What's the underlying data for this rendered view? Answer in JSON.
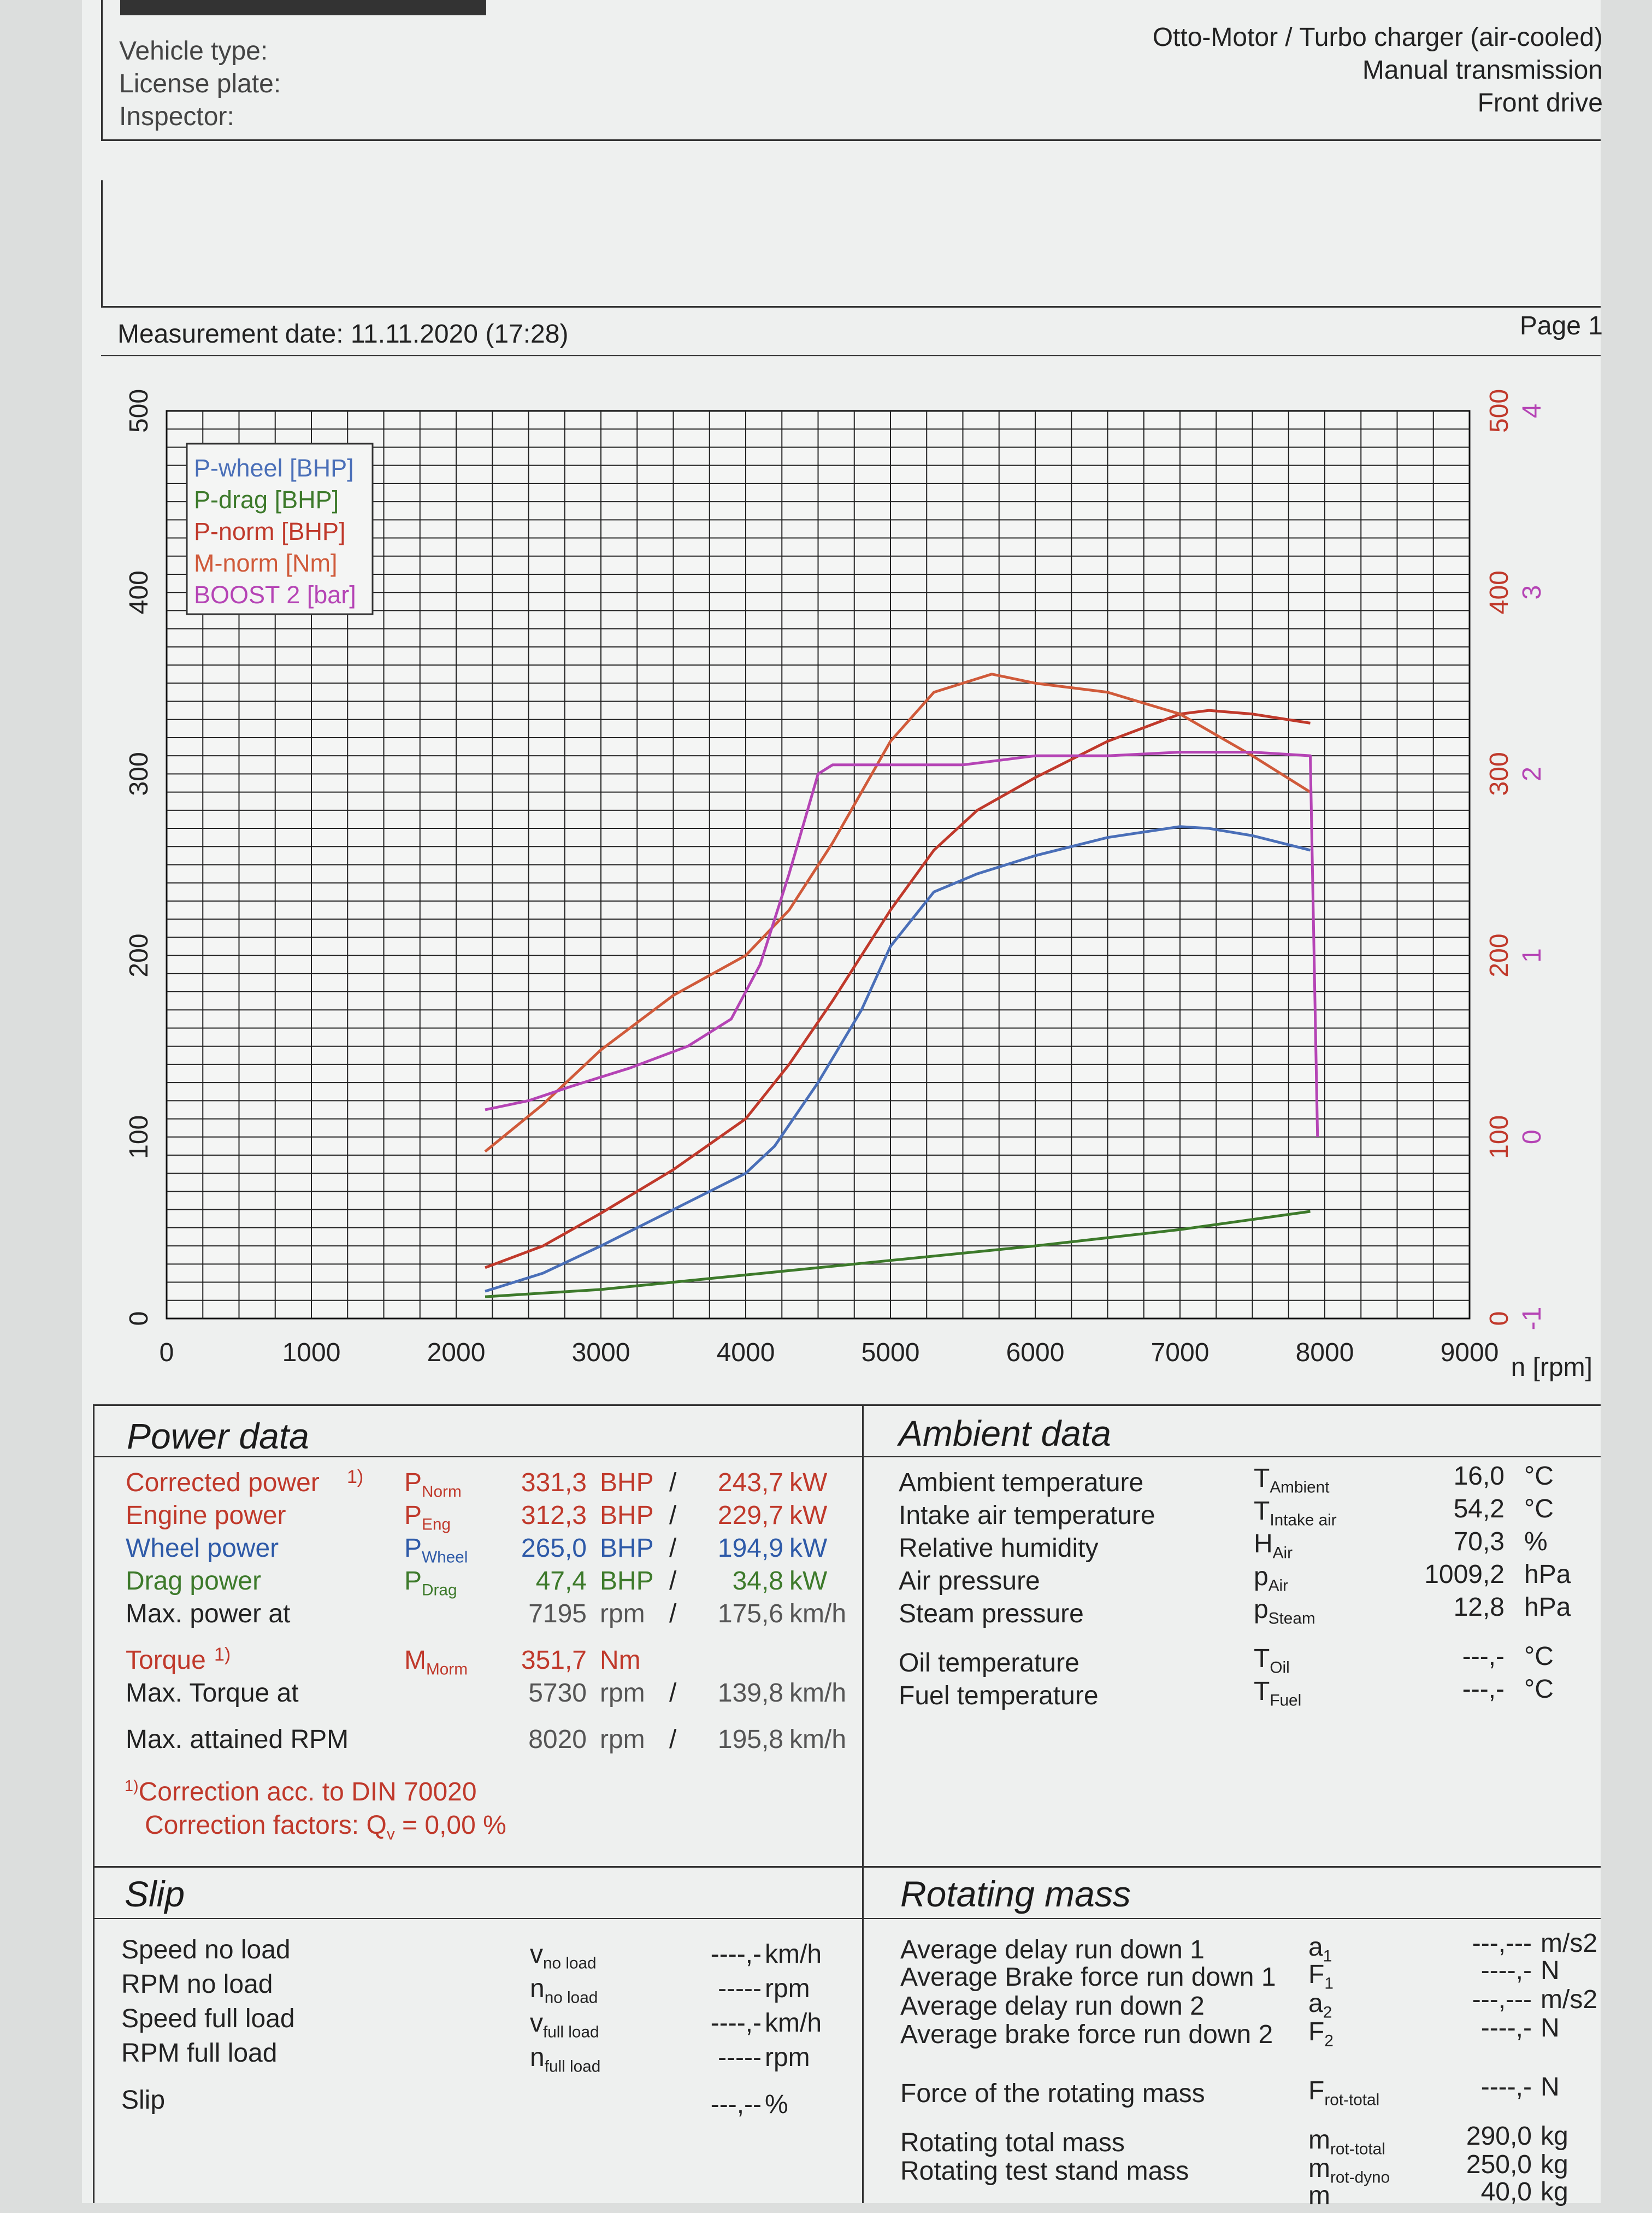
{
  "header": {
    "left": [
      "Vehicle type:",
      "License plate:",
      "Inspector:"
    ],
    "right": [
      "Otto-Motor / Turbo charger (air-cooled)",
      "Manual transmission",
      "Front drive"
    ],
    "measurement": "Measurement date: 11.11.2020 (17:28)",
    "page": "Page 1"
  },
  "chart_data": {
    "type": "line",
    "xlabel": "n [rpm]",
    "x_ticks": [
      "0",
      "1000",
      "2000",
      "3000",
      "4000",
      "5000",
      "6000",
      "7000",
      "8000",
      "9000"
    ],
    "xlim": [
      0,
      9000
    ],
    "left_y_ticks": [
      "0",
      "100",
      "200",
      "300",
      "400",
      "500"
    ],
    "ylim_left": [
      0,
      500
    ],
    "right_y_ticks_torque": [
      "0",
      "100",
      "200",
      "300",
      "400",
      "500"
    ],
    "right_y_ticks_boost": [
      "-1",
      "0",
      "1",
      "2",
      "3",
      "4"
    ],
    "ylim_boost": [
      -1,
      4
    ],
    "grid": true,
    "legend_position": "top-left",
    "series": [
      {
        "name": "P-wheel [BHP]",
        "color": "#4a6fb8",
        "x": [
          2200,
          2600,
          3000,
          3500,
          4000,
          4200,
          4500,
          4800,
          5000,
          5300,
          5600,
          6000,
          6500,
          7000,
          7200,
          7500,
          7900
        ],
        "y": [
          15,
          25,
          40,
          60,
          80,
          95,
          130,
          170,
          205,
          235,
          245,
          255,
          265,
          271,
          270,
          266,
          258
        ]
      },
      {
        "name": "P-drag [BHP]",
        "color": "#3d7a2b",
        "x": [
          2200,
          3000,
          4000,
          5000,
          6000,
          7000,
          7900
        ],
        "y": [
          12,
          16,
          24,
          32,
          40,
          49,
          59
        ]
      },
      {
        "name": "P-norm [BHP]",
        "color": "#c0392b",
        "x": [
          2200,
          2600,
          3000,
          3500,
          4000,
          4300,
          4600,
          5000,
          5300,
          5600,
          6000,
          6500,
          7000,
          7200,
          7500,
          7900
        ],
        "y": [
          28,
          40,
          58,
          82,
          110,
          140,
          175,
          225,
          258,
          280,
          298,
          318,
          333,
          335,
          333,
          328
        ]
      },
      {
        "name": "M-norm [Nm]",
        "color": "#d05a3a",
        "x": [
          2200,
          2600,
          3000,
          3500,
          4000,
          4300,
          4600,
          5000,
          5300,
          5700,
          6000,
          6500,
          7000,
          7500,
          7900
        ],
        "y": [
          92,
          118,
          148,
          178,
          200,
          225,
          262,
          318,
          345,
          355,
          350,
          345,
          333,
          310,
          290
        ]
      },
      {
        "name": "BOOST 2 [bar]",
        "color": "#b544b5",
        "x": [
          2200,
          2500,
          2800,
          3200,
          3600,
          3900,
          4100,
          4300,
          4500,
          4600,
          5000,
          5500,
          6000,
          6500,
          7000,
          7500,
          7900,
          7950
        ],
        "y": [
          0.15,
          0.2,
          0.28,
          0.38,
          0.5,
          0.65,
          0.95,
          1.45,
          2.0,
          2.05,
          2.05,
          2.05,
          2.1,
          2.1,
          2.12,
          2.12,
          2.1,
          0.0
        ]
      }
    ]
  },
  "power": {
    "title": "Power data",
    "rows": [
      {
        "label": "Corrected power",
        "sup": "1)",
        "sym": "P",
        "sub": "Norm",
        "v1": "331,3",
        "u1": "BHP",
        "sep": "/",
        "v2": "243,7",
        "u2": "kW"
      },
      {
        "label": "Engine power",
        "sym": "P",
        "sub": "Eng",
        "v1": "312,3",
        "u1": "BHP",
        "sep": "/",
        "v2": "229,7",
        "u2": "kW"
      },
      {
        "label": "Wheel power",
        "sym": "P",
        "sub": "Wheel",
        "v1": "265,0",
        "u1": "BHP",
        "sep": "/",
        "v2": "194,9",
        "u2": "kW"
      },
      {
        "label": "Drag power",
        "sym": "P",
        "sub": "Drag",
        "v1": "47,4",
        "u1": "BHP",
        "sep": "/",
        "v2": "34,8",
        "u2": "kW"
      },
      {
        "label": "Max. power at",
        "v1": "7195",
        "u1": "rpm",
        "sep": "/",
        "v2": "175,6",
        "u2": "km/h"
      },
      {
        "label": "Torque",
        "sup": "1)",
        "sym": "M",
        "sub": "Morm",
        "v1": "351,7",
        "u1": "Nm"
      },
      {
        "label": "Max. Torque at",
        "v1": "5730",
        "u1": "rpm",
        "sep": "/",
        "v2": "139,8",
        "u2": "km/h"
      },
      {
        "label": "Max. attained RPM",
        "v1": "8020",
        "u1": "rpm",
        "sep": "/",
        "v2": "195,8",
        "u2": "km/h"
      }
    ],
    "note1_sup": "1)",
    "note1": "Correction acc. to DIN 70020",
    "note2_a": "Correction factors: Q",
    "note2_sub": "v",
    "note2_b": " =   0,00 %"
  },
  "ambient": {
    "title": "Ambient data",
    "rows": [
      {
        "label": "Ambient temperature",
        "sym": "T",
        "sub": "Ambient",
        "val": "16,0",
        "unit": "°C"
      },
      {
        "label": "Intake air temperature",
        "sym": "T",
        "sub": "Intake air",
        "val": "54,2",
        "unit": "°C"
      },
      {
        "label": "Relative humidity",
        "sym": "H",
        "sub": "Air",
        "val": "70,3",
        "unit": "%"
      },
      {
        "label": "Air pressure",
        "sym": "p",
        "sub": "Air",
        "val": "1009,2",
        "unit": "hPa"
      },
      {
        "label": "Steam pressure",
        "sym": "p",
        "sub": "Steam",
        "val": "12,8",
        "unit": "hPa"
      },
      {
        "label": "Oil temperature",
        "sym": "T",
        "sub": "Oil",
        "val": "---,-",
        "unit": "°C"
      },
      {
        "label": "Fuel temperature",
        "sym": "T",
        "sub": "Fuel",
        "val": "---,-",
        "unit": "°C"
      }
    ]
  },
  "slip": {
    "title": "Slip",
    "rows": [
      {
        "label": "Speed no load",
        "sym": "v",
        "sub": "no load",
        "val": "----,-",
        "unit": "km/h"
      },
      {
        "label": "RPM no load",
        "sym": "n",
        "sub": "no load",
        "val": "-----",
        "unit": "rpm"
      },
      {
        "label": "Speed full load",
        "sym": "v",
        "sub": "full load",
        "val": "----,-",
        "unit": "km/h"
      },
      {
        "label": "RPM full load",
        "sym": "n",
        "sub": "full load",
        "val": "-----",
        "unit": "rpm"
      },
      {
        "label": "Slip",
        "val": "---,--",
        "unit": "%"
      }
    ]
  },
  "rotating": {
    "title": "Rotating mass",
    "rows": [
      {
        "label": "Average delay run down 1",
        "sym": "a",
        "sub": "1",
        "val": "---,---",
        "unit": "m/s2"
      },
      {
        "label": "Average Brake force run down 1",
        "sym": "F",
        "sub": "1",
        "val": "----,-",
        "unit": "N"
      },
      {
        "label": "Average delay run down 2",
        "sym": "a",
        "sub": "2",
        "val": "---,---",
        "unit": "m/s2"
      },
      {
        "label": "Average brake force run down 2",
        "sym": "F",
        "sub": "2",
        "val": "----,-",
        "unit": "N"
      },
      {
        "label": "Force of the rotating mass",
        "sym": "F",
        "sub": "rot-total",
        "val": "----,-",
        "unit": "N"
      },
      {
        "label": "Rotating total mass",
        "sym": "m",
        "sub": "rot-total",
        "val": "290,0",
        "unit": "kg"
      },
      {
        "label": "Rotating test stand mass",
        "sym": "m",
        "sub": "rot-dyno",
        "val": "250,0",
        "unit": "kg"
      },
      {
        "label": "",
        "sym": "m",
        "sub": "",
        "val": "40,0",
        "unit": "kg"
      }
    ]
  }
}
